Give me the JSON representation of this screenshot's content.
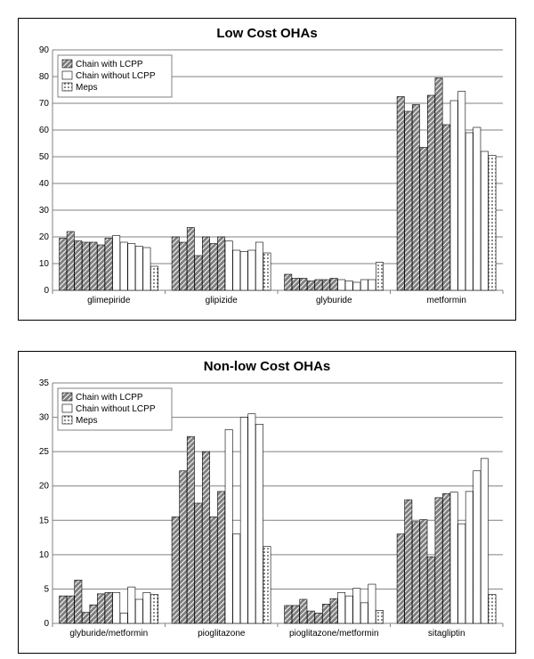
{
  "legend": {
    "items": [
      {
        "key": "lcpp",
        "label": "Chain with LCPP",
        "fill": "#808080",
        "pattern": "hatch"
      },
      {
        "key": "nolcpp",
        "label": "Chain without LCPP",
        "fill": "#ffffff",
        "pattern": "none"
      },
      {
        "key": "meps",
        "label": "Meps",
        "fill": "#ffffff",
        "pattern": "dots"
      }
    ]
  },
  "charts": [
    {
      "id": "chart1",
      "title": "Low Cost OHAs",
      "title_fontsize": 15,
      "background_color": "#ffffff",
      "plot_background": "#ffffff",
      "grid_color": "#808080",
      "axis_color": "#808080",
      "label_fontsize": 10,
      "ylim": [
        0,
        90
      ],
      "ytick_step": 10,
      "series_order": [
        "lcpp",
        "lcpp",
        "lcpp",
        "lcpp",
        "lcpp",
        "lcpp",
        "lcpp",
        "nolcpp",
        "nolcpp",
        "nolcpp",
        "nolcpp",
        "nolcpp",
        "meps"
      ],
      "categories": [
        {
          "name": "glimepiride",
          "values": [
            19.5,
            22,
            18.5,
            18,
            18,
            17,
            19.5,
            20.5,
            18,
            17.5,
            16.5,
            16,
            9
          ]
        },
        {
          "name": "glipizide",
          "values": [
            20,
            18,
            23.5,
            13,
            20,
            17.5,
            20,
            18.5,
            15,
            14.5,
            15,
            18,
            14
          ]
        },
        {
          "name": "glyburide",
          "values": [
            6,
            4.5,
            4.5,
            3.5,
            4,
            4,
            4.5,
            4,
            3.5,
            3,
            4,
            4,
            10.5
          ]
        },
        {
          "name": "metformin",
          "values": [
            72.5,
            67,
            69.5,
            53.5,
            73,
            79.5,
            62,
            71,
            74.5,
            59,
            61,
            52,
            50.5
          ]
        }
      ]
    },
    {
      "id": "chart2",
      "title": "Non-low Cost OHAs",
      "title_fontsize": 15,
      "background_color": "#ffffff",
      "plot_background": "#ffffff",
      "grid_color": "#808080",
      "axis_color": "#808080",
      "label_fontsize": 10,
      "ylim": [
        0,
        35
      ],
      "ytick_step": 5,
      "series_order": [
        "lcpp",
        "lcpp",
        "lcpp",
        "lcpp",
        "lcpp",
        "lcpp",
        "lcpp",
        "nolcpp",
        "nolcpp",
        "nolcpp",
        "nolcpp",
        "nolcpp",
        "meps"
      ],
      "categories": [
        {
          "name": "glyburide/metformin",
          "values": [
            4,
            4,
            6.3,
            1.6,
            2.7,
            4.3,
            4.5,
            4.5,
            1.5,
            5.3,
            3.5,
            4.5,
            4.2
          ]
        },
        {
          "name": "pioglitazone",
          "values": [
            15.5,
            22.2,
            27.2,
            17.5,
            25,
            15.5,
            19.2,
            28.2,
            13,
            30,
            30.5,
            29,
            11.2
          ]
        },
        {
          "name": "pioglitazone/metformin",
          "values": [
            2.6,
            2.6,
            3.5,
            1.8,
            1.5,
            2.8,
            3.6,
            4.5,
            4,
            5.1,
            3,
            5.7,
            1.9
          ]
        },
        {
          "name": "sitagliptin",
          "values": [
            13,
            18,
            14.8,
            15.1,
            9.7,
            18.3,
            18.9,
            19.1,
            14.5,
            19.2,
            22.2,
            24,
            4.2
          ]
        }
      ]
    }
  ]
}
